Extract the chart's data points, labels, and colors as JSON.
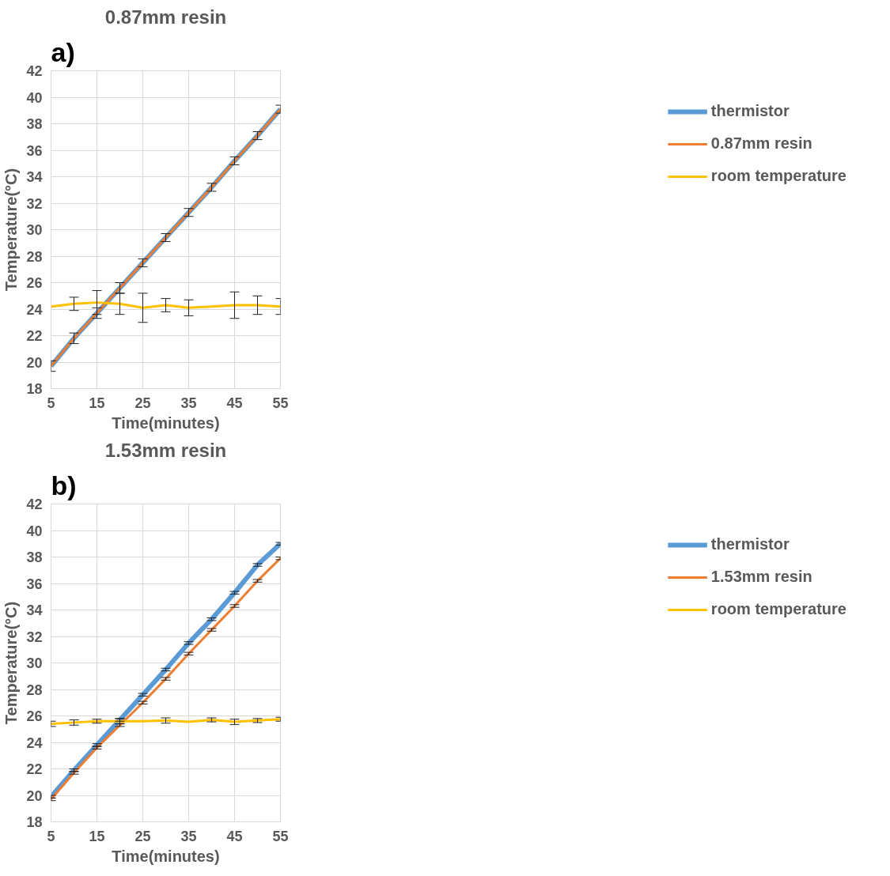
{
  "chart_data": [
    {
      "type": "line",
      "title": "0.87mm resin",
      "annotations": [
        "a)"
      ],
      "xlabel": "Time(minutes)",
      "ylabel": "Temperature(°C)",
      "x": [
        5,
        10,
        15,
        20,
        25,
        30,
        35,
        40,
        45,
        50,
        55
      ],
      "xlim": [
        5,
        55
      ],
      "xticks": [
        5,
        15,
        25,
        35,
        45,
        55
      ],
      "ylim": [
        18,
        42
      ],
      "yticks": [
        18,
        20,
        22,
        24,
        26,
        28,
        30,
        32,
        34,
        36,
        38,
        40,
        42
      ],
      "grid": true,
      "legend": "right",
      "series": [
        {
          "name": "thermistor",
          "color": "#5b9bd5",
          "values": [
            19.7,
            21.8,
            23.7,
            25.6,
            27.5,
            29.4,
            31.3,
            33.2,
            35.2,
            37.1,
            39.1
          ]
        },
        {
          "name": "0.87mm resin",
          "color": "#ed7d31",
          "values": [
            19.7,
            21.8,
            23.7,
            25.6,
            27.5,
            29.4,
            31.3,
            33.2,
            35.2,
            37.1,
            39.1
          ],
          "errors": [
            0.4,
            0.4,
            0.4,
            0.4,
            0.3,
            0.3,
            0.3,
            0.3,
            0.3,
            0.3,
            0.3
          ]
        },
        {
          "name": "room temperature",
          "color": "#ffc000",
          "values": [
            24.2,
            24.4,
            24.5,
            24.4,
            24.1,
            24.3,
            24.1,
            24.2,
            24.3,
            24.3,
            24.2
          ],
          "errors": [
            null,
            0.5,
            0.9,
            0.8,
            1.1,
            0.5,
            0.6,
            null,
            1.0,
            0.7,
            0.6
          ]
        }
      ]
    },
    {
      "type": "line",
      "title": "1.53mm resin",
      "annotations": [
        "b)"
      ],
      "xlabel": "Time(minutes)",
      "ylabel": "Temperature(°C)",
      "x": [
        5,
        10,
        15,
        20,
        25,
        30,
        35,
        40,
        45,
        50,
        55
      ],
      "xlim": [
        5,
        55
      ],
      "xticks": [
        5,
        15,
        25,
        35,
        45,
        55
      ],
      "ylim": [
        18,
        42
      ],
      "yticks": [
        18,
        20,
        22,
        24,
        26,
        28,
        30,
        32,
        34,
        36,
        38,
        40,
        42
      ],
      "grid": true,
      "legend": "right",
      "series": [
        {
          "name": "thermistor",
          "color": "#5b9bd5",
          "values": [
            19.9,
            21.9,
            23.8,
            25.7,
            27.6,
            29.5,
            31.5,
            33.3,
            35.3,
            37.4,
            39.0
          ],
          "errors": [
            0.1,
            0.1,
            0.1,
            0.1,
            0.1,
            0.1,
            0.1,
            0.1,
            0.1,
            0.1,
            0.1
          ]
        },
        {
          "name": "1.53mm resin",
          "color": "#ed7d31",
          "values": [
            19.7,
            21.7,
            23.6,
            25.3,
            27.0,
            28.8,
            30.7,
            32.5,
            34.3,
            36.2,
            37.9
          ],
          "errors": [
            0.1,
            0.1,
            0.1,
            0.1,
            0.1,
            0.1,
            0.1,
            0.1,
            0.1,
            0.1,
            0.1
          ]
        },
        {
          "name": "room temperature",
          "color": "#ffc000",
          "values": [
            25.4,
            25.5,
            25.6,
            25.6,
            25.6,
            25.65,
            25.55,
            25.7,
            25.55,
            25.65,
            25.75
          ],
          "errors": [
            0.2,
            0.2,
            0.15,
            0.2,
            null,
            0.2,
            null,
            0.15,
            0.2,
            0.15,
            0.15
          ]
        }
      ]
    }
  ]
}
